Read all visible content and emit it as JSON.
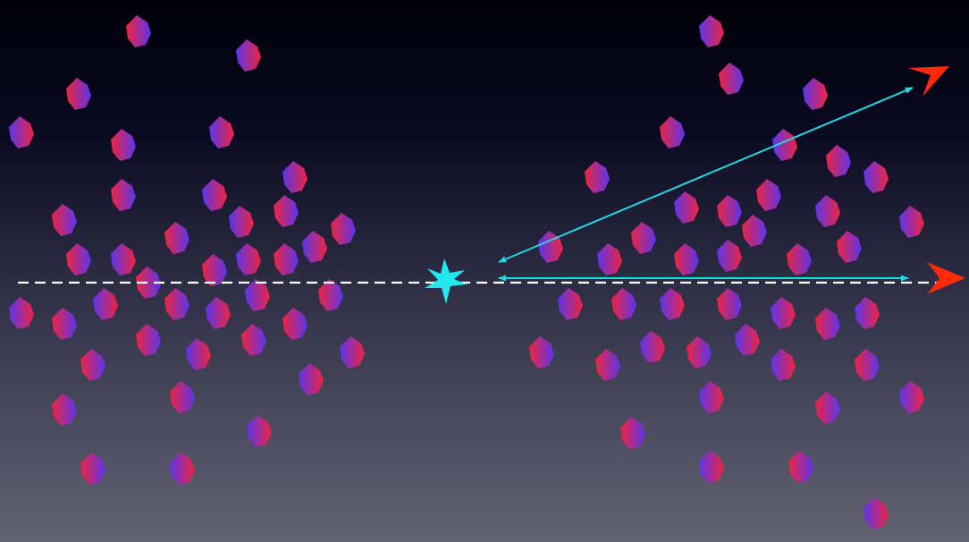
{
  "diagram": {
    "colors": {
      "background_top": "#000008",
      "background_bottom": "#626272",
      "particle_red": "#f0243c",
      "particle_blue": "#5a35ee",
      "axis_line": "#ffffff",
      "collision_star": "#22e8ee",
      "scatter_arrows": "#22d8e4",
      "jet_markers": "#ff2a0a"
    },
    "elements": {
      "left_particle_cluster": "particle-cluster",
      "right_particle_cluster": "particle-cluster",
      "beam_axis": "dashed-line",
      "collision_point": "star-icon",
      "scattered_arrow": "double-arrow",
      "forward_arrow": "double-arrow",
      "jet_markers": "arrowhead-icon"
    }
  }
}
